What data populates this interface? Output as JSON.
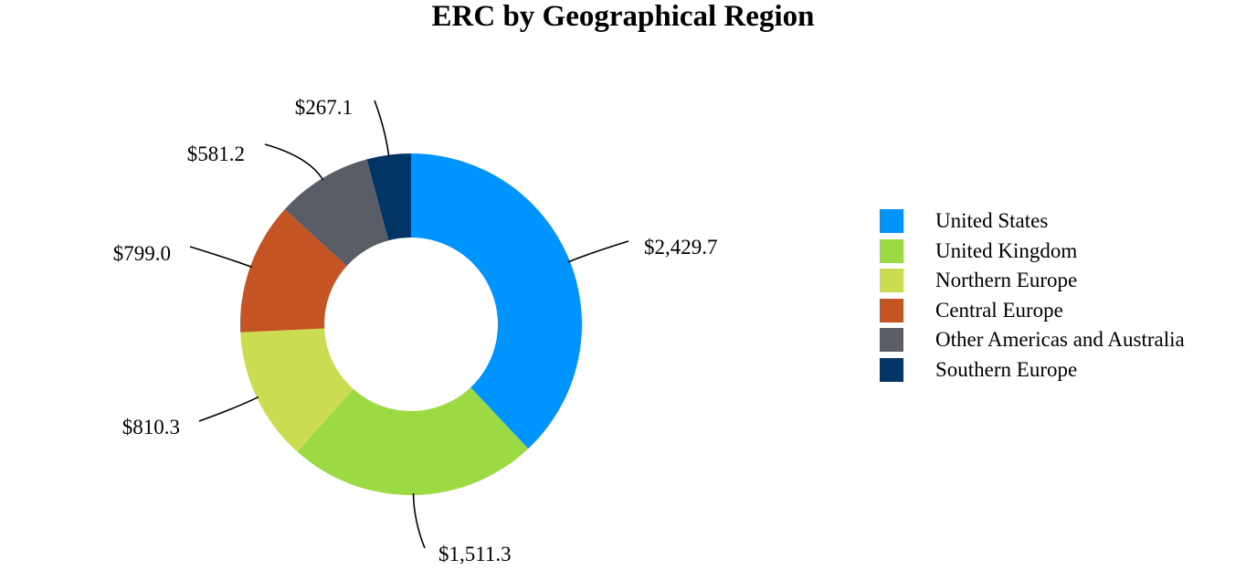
{
  "chart_data": {
    "type": "pie",
    "donut": true,
    "title": "ERC by Geographical Region",
    "legend_position": "right",
    "categories": [
      "United States",
      "United Kingdom",
      "Northern Europe",
      "Central Europe",
      "Other Americas and Australia",
      "Southern Europe"
    ],
    "values": [
      2429.7,
      1511.3,
      810.3,
      799.0,
      581.2,
      267.1
    ],
    "labels": [
      "$2,429.7",
      "$1,511.3",
      "$810.3",
      "$799.0",
      "$581.2",
      "$267.1"
    ],
    "colors": [
      "#0094FF",
      "#9CDA44",
      "#CBDC50",
      "#C45423",
      "#5A5C66",
      "#003566"
    ]
  }
}
